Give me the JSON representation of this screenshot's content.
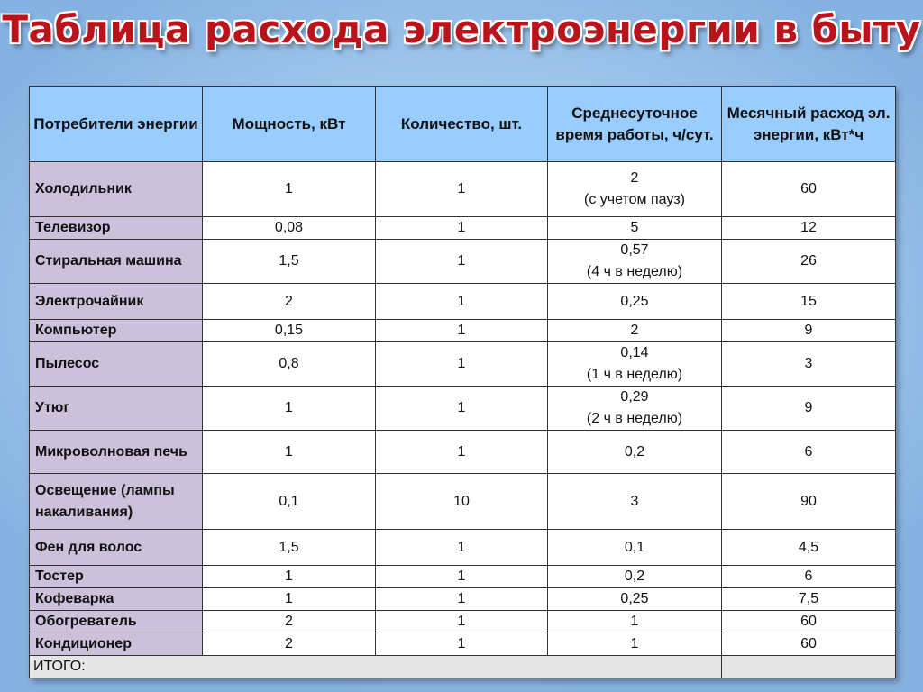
{
  "title": "Таблица расхода электроэнергии в быту",
  "table": {
    "headers": [
      "Потребители энергии",
      "Мощность, кВт",
      "Количество, шт.",
      "Среднесуточное время работы, ч/сут.",
      "Месячный расход эл. энергии, кВт*ч"
    ],
    "rows": [
      {
        "name": "Холодильник",
        "power": "1",
        "qty": "1",
        "time": "2",
        "time_note": "(с учетом пауз)",
        "monthly": "60"
      },
      {
        "name": "Телевизор",
        "power": "0,08",
        "qty": "1",
        "time": "5",
        "time_note": "",
        "monthly": "12"
      },
      {
        "name": "Стиральная машина",
        "power": "1,5",
        "qty": "1",
        "time": "0,57",
        "time_note": "(4 ч в неделю)",
        "monthly": "26"
      },
      {
        "name": "Электрочайник",
        "power": "2",
        "qty": "1",
        "time": "0,25",
        "time_note": "",
        "monthly": "15"
      },
      {
        "name": "Компьютер",
        "power": "0,15",
        "qty": "1",
        "time": "2",
        "time_note": "",
        "monthly": "9"
      },
      {
        "name": "Пылесос",
        "power": "0,8",
        "qty": "1",
        "time": "0,14",
        "time_note": "(1 ч в неделю)",
        "monthly": "3"
      },
      {
        "name": "Утюг",
        "power": "1",
        "qty": "1",
        "time": "0,29",
        "time_note": "(2 ч в неделю)",
        "monthly": "9"
      },
      {
        "name": "Микроволновая печь",
        "power": "1",
        "qty": "1",
        "time": "0,2",
        "time_note": "",
        "monthly": "6"
      },
      {
        "name": "Освещение (лампы накаливания)",
        "power": "0,1",
        "qty": "10",
        "time": "3",
        "time_note": "",
        "monthly": "90"
      },
      {
        "name": "Фен для волос",
        "power": "1,5",
        "qty": "1",
        "time": "0,1",
        "time_note": "",
        "monthly": "4,5"
      },
      {
        "name": "Тостер",
        "power": "1",
        "qty": "1",
        "time": "0,2",
        "time_note": "",
        "monthly": "6"
      },
      {
        "name": "Кофеварка",
        "power": "1",
        "qty": "1",
        "time": "0,25",
        "time_note": "",
        "monthly": "7,5"
      },
      {
        "name": "Обогреватель",
        "power": "2",
        "qty": "1",
        "time": "1",
        "time_note": "",
        "monthly": "60"
      },
      {
        "name": "Кондиционер",
        "power": "2",
        "qty": "1",
        "time": "1",
        "time_note": "",
        "monthly": "60"
      }
    ],
    "total_label": "ИТОГО:",
    "total_value": ""
  }
}
